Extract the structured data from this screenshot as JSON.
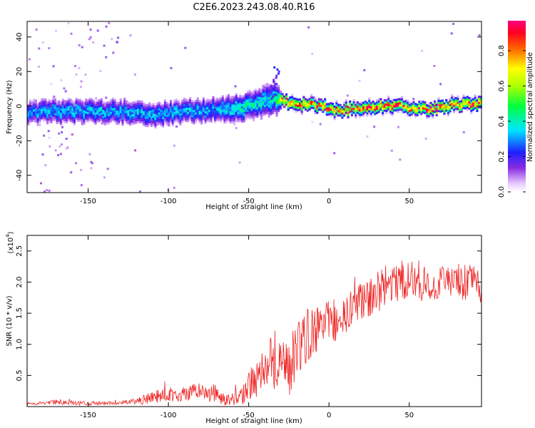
{
  "title": "C2E6.2023.243.08.40.R16",
  "colors": {
    "snr_line": "#ee2222",
    "background": "#ffffff",
    "axis": "#000000"
  },
  "chart_data": [
    {
      "type": "heatmap",
      "name": "spectrogram",
      "xlabel": "Height of straight line (km)",
      "ylabel": "Frequency (Hz)",
      "xlim": [
        -188,
        95
      ],
      "ylim": [
        -50,
        49
      ],
      "x_ticks": [
        -150,
        -100,
        -50,
        0,
        50
      ],
      "y_ticks": [
        -40,
        -20,
        0,
        20,
        40
      ],
      "x_tick_labels": [
        "-150",
        "-100",
        "-50",
        "0",
        "50"
      ],
      "y_tick_labels": [
        "-40",
        "-20",
        "0",
        "20",
        "40"
      ],
      "colorbar": {
        "label": "Normalized spectral amplitude",
        "range": [
          0,
          0.97
        ],
        "ticks": [
          0.0,
          0.2,
          0.4,
          0.6,
          0.8
        ],
        "tick_labels": [
          "0.0",
          "0.2",
          "0.4",
          "0.6",
          "0.8"
        ]
      },
      "ridge": {
        "x": [
          -188,
          -170,
          -150,
          -130,
          -110,
          -90,
          -70,
          -60,
          -50,
          -40,
          -33,
          -30,
          -20,
          -10,
          0,
          5,
          10,
          20,
          30,
          40,
          50,
          60,
          70,
          80,
          95
        ],
        "center_freq": [
          -4,
          -3,
          -3,
          -3,
          -5,
          -3,
          -2,
          -2,
          0,
          3,
          5,
          3,
          1,
          1,
          -1,
          -3,
          -2,
          -1,
          0,
          0,
          -1,
          -2,
          0,
          1,
          1
        ],
        "width_hz": [
          6,
          6,
          6,
          6,
          6,
          6,
          6,
          7,
          7,
          8,
          8,
          3,
          3,
          3,
          3,
          3,
          3,
          3,
          3,
          3,
          3,
          3,
          3,
          3,
          3
        ],
        "peak_amplitude": [
          0.3,
          0.35,
          0.35,
          0.35,
          0.35,
          0.35,
          0.35,
          0.4,
          0.4,
          0.4,
          0.45,
          0.85,
          0.85,
          0.85,
          0.85,
          0.85,
          0.85,
          0.9,
          0.9,
          0.9,
          0.9,
          0.9,
          0.9,
          0.9,
          0.9
        ]
      }
    },
    {
      "type": "line",
      "name": "snr",
      "xlabel": "Height of straight line (km)",
      "ylabel": "SNR (10 * v/v)",
      "y_multiplier": "(x10",
      "y_multiplier_exp": "4",
      "y_multiplier_close": ")",
      "xlim": [
        -188,
        95
      ],
      "ylim": [
        0,
        2.75
      ],
      "x_ticks": [
        -150,
        -100,
        -50,
        0,
        50
      ],
      "y_ticks": [
        0.5,
        1.0,
        1.5,
        2.0,
        2.5
      ],
      "x_tick_labels": [
        "-150",
        "-100",
        "-50",
        "0",
        "50"
      ],
      "y_tick_labels": [
        "0.5",
        "1.0",
        "1.5",
        "2.0",
        "2.5"
      ],
      "series": [
        {
          "values_x": [
            -188,
            -170,
            -150,
            -130,
            -120,
            -110,
            -100,
            -90,
            -80,
            -70,
            -65,
            -60,
            -55,
            -50,
            -45,
            -40,
            -35,
            -30,
            -25,
            -20,
            -15,
            -10,
            -5,
            0,
            5,
            10,
            15,
            20,
            25,
            30,
            35,
            40,
            50,
            60,
            70,
            80,
            95
          ],
          "values_y": [
            0.05,
            0.07,
            0.05,
            0.06,
            0.08,
            0.15,
            0.2,
            0.2,
            0.25,
            0.2,
            0.1,
            0.12,
            0.15,
            0.3,
            0.5,
            0.7,
            0.8,
            0.7,
            0.6,
            0.9,
            1.1,
            1.2,
            1.3,
            1.4,
            1.3,
            1.4,
            1.6,
            1.7,
            1.75,
            1.8,
            1.9,
            2.0,
            2.05,
            1.95,
            2.0,
            2.0,
            1.95
          ],
          "noise_amplitude": [
            0.02,
            0.04,
            0.03,
            0.03,
            0.05,
            0.1,
            0.12,
            0.12,
            0.15,
            0.15,
            0.08,
            0.1,
            0.12,
            0.25,
            0.35,
            0.4,
            0.5,
            0.5,
            0.45,
            0.5,
            0.45,
            0.4,
            0.35,
            0.3,
            0.3,
            0.35,
            0.3,
            0.3,
            0.3,
            0.35,
            0.35,
            0.35,
            0.3,
            0.3,
            0.3,
            0.3,
            0.3
          ]
        }
      ]
    }
  ]
}
